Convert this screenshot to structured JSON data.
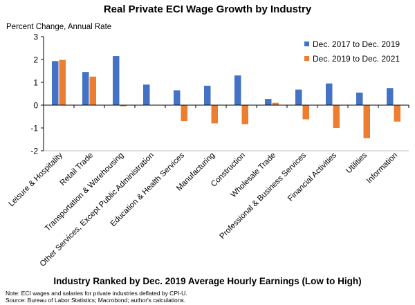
{
  "chart_data": {
    "type": "bar",
    "title": "Real Private ECI Wage Growth by Industry",
    "ylabel": "Percent Change, Annual Rate",
    "xlabel": "Industry Ranked by Dec. 2019 Average Hourly Earnings (Low to High)",
    "ylim": [
      -2,
      3
    ],
    "yticks": [
      "3",
      "2",
      "1",
      "0",
      "-1",
      "-2"
    ],
    "grid": false,
    "legend_position": "top-right",
    "categories": [
      "Leisure & Hospitality",
      "Retail Trade",
      "Transportation & Warehousing",
      "Other Services, Except Public Administration",
      "Education & Health Services",
      "Manufacturing",
      "Construction",
      "Wholesale Trade",
      "Professional & Business Services",
      "Financial Activities",
      "Utilities",
      "Information"
    ],
    "series": [
      {
        "name": "Dec. 2017 to Dec. 2019",
        "color": "#4472C4",
        "values": [
          1.93,
          1.45,
          2.15,
          0.9,
          0.65,
          0.85,
          1.3,
          0.27,
          0.68,
          0.95,
          0.55,
          0.75
        ]
      },
      {
        "name": "Dec. 2019 to Dec. 2021",
        "color": "#ED7D31",
        "values": [
          1.98,
          1.25,
          -0.05,
          0.01,
          -0.7,
          -0.8,
          -0.83,
          0.1,
          -0.62,
          -1.0,
          -1.45,
          -0.72
        ]
      }
    ]
  },
  "footnote": {
    "note": "Note: ECI wages and salaries for private industries deflated by CPI-U.",
    "source": "Source: Bureau of Labor Statistics; Macrobond; author's calculations."
  }
}
